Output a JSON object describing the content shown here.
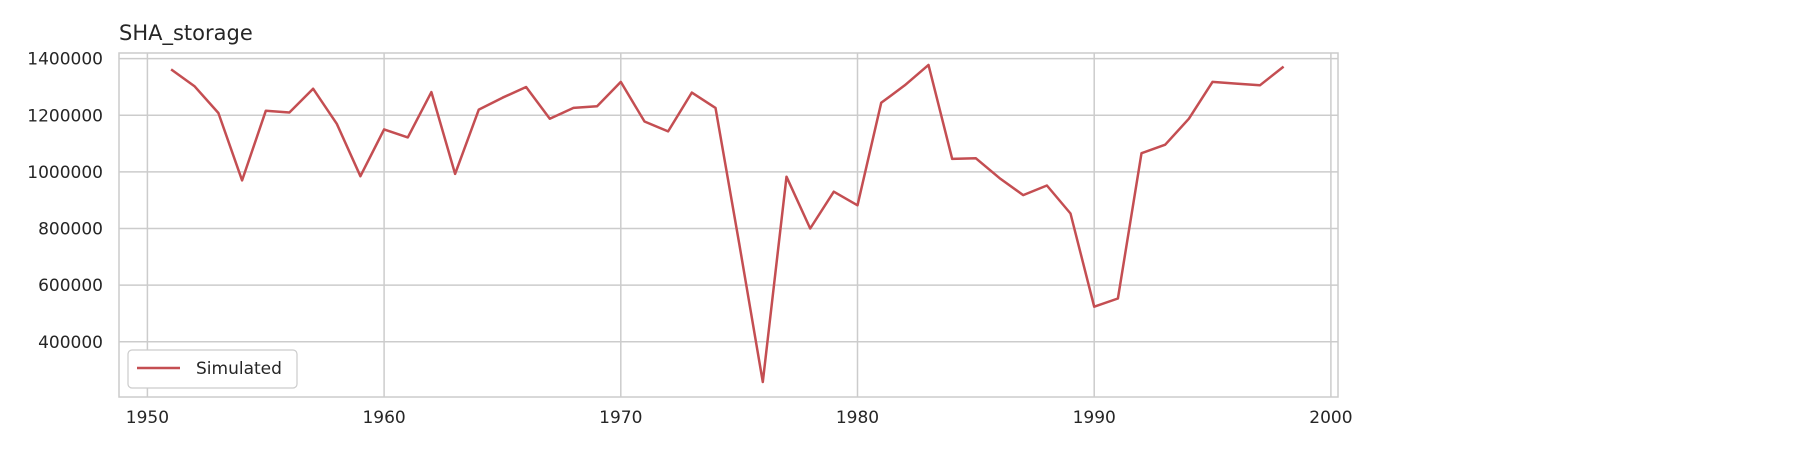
{
  "chart_data": {
    "type": "line",
    "title": "SHA_storage",
    "xlabel": "",
    "ylabel": "",
    "xlim": [
      1948.8,
      2000.3
    ],
    "ylim": [
      205000,
      1420000
    ],
    "xticks": [
      1950,
      1960,
      1970,
      1980,
      1990,
      2000
    ],
    "yticks": [
      400000,
      600000,
      800000,
      1000000,
      1200000,
      1400000
    ],
    "grid": true,
    "legend_position": "lower-left",
    "series": [
      {
        "name": "Simulated",
        "color": "#c44e52",
        "x": [
          1951,
          1952,
          1953,
          1954,
          1955,
          1956,
          1957,
          1958,
          1959,
          1960,
          1961,
          1962,
          1963,
          1964,
          1965,
          1966,
          1967,
          1968,
          1969,
          1970,
          1971,
          1972,
          1973,
          1974,
          1975,
          1976,
          1977,
          1978,
          1979,
          1980,
          1981,
          1982,
          1983,
          1984,
          1985,
          1986,
          1987,
          1988,
          1989,
          1990,
          1991,
          1992,
          1993,
          1994,
          1995,
          1996,
          1997,
          1998
        ],
        "values": [
          1362000,
          1302000,
          1208000,
          970000,
          1216000,
          1210000,
          1294000,
          1170000,
          985000,
          1150000,
          1122000,
          1282000,
          993000,
          1220000,
          1262000,
          1300000,
          1188000,
          1226000,
          1232000,
          1318000,
          1178000,
          1143000,
          1280000,
          1226000,
          747000,
          258000,
          983000,
          800000,
          930000,
          882000,
          1244000,
          1306000,
          1378000,
          1046000,
          1048000,
          978000,
          918000,
          952000,
          853000,
          524000,
          553000,
          1066000,
          1096000,
          1188000,
          1318000,
          1312000,
          1306000,
          1372000
        ]
      }
    ]
  }
}
